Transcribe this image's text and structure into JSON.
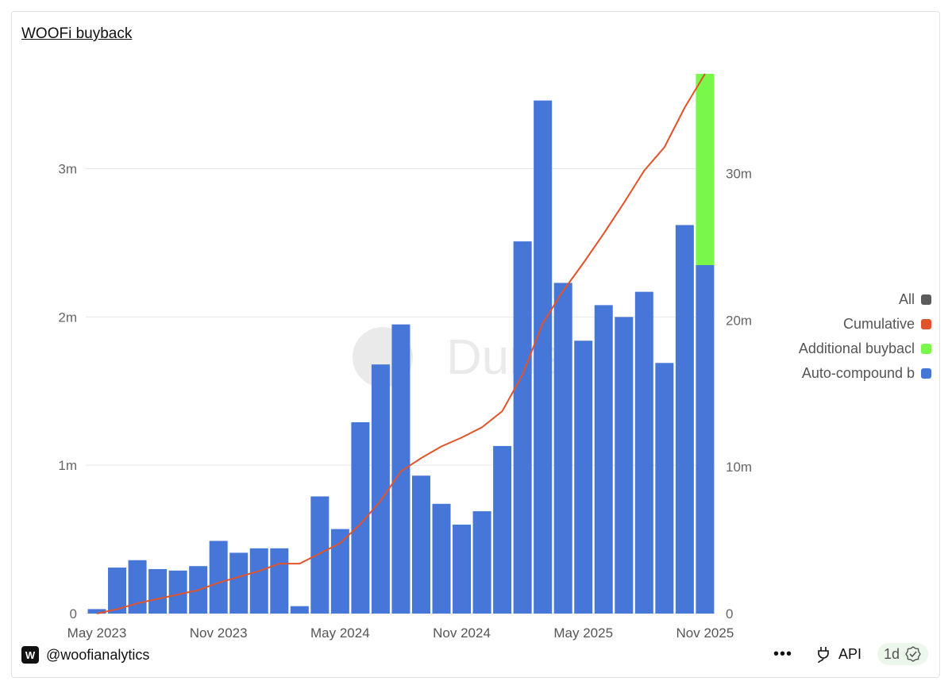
{
  "title": "WOOFi buyback",
  "watermark": "Dune",
  "footer": {
    "handle": "@woofianalytics",
    "api_label": "API",
    "refresh_badge": "1d"
  },
  "legend": [
    {
      "label": "All",
      "color": "#5b5b5b"
    },
    {
      "label": "Cumulative",
      "color": "#e0542c"
    },
    {
      "label": "Additional buybacl",
      "color": "#79f74a"
    },
    {
      "label": "Auto-compound b",
      "color": "#4676d7"
    }
  ],
  "chart_data": {
    "type": "bar",
    "stacked": true,
    "categories": [
      "May 2023",
      "Jun 2023",
      "Jul 2023",
      "Aug 2023",
      "Sep 2023",
      "Oct 2023",
      "Nov 2023",
      "Dec 2023",
      "Jan 2024",
      "Feb 2024",
      "Mar 2024",
      "Apr 2024",
      "May 2024",
      "Jun 2024",
      "Jul 2024",
      "Aug 2024",
      "Sep 2024",
      "Oct 2024",
      "Nov 2024",
      "Dec 2024",
      "Jan 2025",
      "Feb 2025",
      "Mar 2025",
      "Apr 2025",
      "May 2025",
      "Jun 2025",
      "Jul 2025",
      "Aug 2025",
      "Sep 2025",
      "Oct 2025",
      "Nov 2025"
    ],
    "x_tick_labels": [
      "May 2023",
      "Nov 2023",
      "May 2024",
      "Nov 2024",
      "May 2025",
      "Nov 2025"
    ],
    "series": [
      {
        "name": "Auto-compound b",
        "axis": "left",
        "type": "bar",
        "color": "#4676d7",
        "values": [
          0.03,
          0.31,
          0.36,
          0.3,
          0.29,
          0.32,
          0.49,
          0.41,
          0.44,
          0.44,
          0.05,
          0.79,
          0.57,
          1.29,
          1.68,
          1.95,
          0.93,
          0.74,
          0.6,
          0.69,
          1.13,
          2.51,
          3.46,
          2.23,
          1.84,
          2.08,
          2.0,
          2.17,
          1.69,
          2.62,
          2.35
        ]
      },
      {
        "name": "Additional buybacl",
        "axis": "left",
        "type": "bar",
        "color": "#79f74a",
        "values": [
          0,
          0,
          0,
          0,
          0,
          0,
          0,
          0,
          0,
          0,
          0,
          0,
          0,
          0,
          0,
          0,
          0,
          0,
          0,
          0,
          0,
          0,
          0,
          0,
          0,
          0,
          0,
          0,
          0,
          0,
          1.29
        ]
      },
      {
        "name": "Cumulative",
        "axis": "right",
        "type": "line",
        "color": "#e0542c",
        "values": [
          0,
          0.3,
          0.7,
          1.0,
          1.3,
          1.6,
          2.1,
          2.5,
          2.9,
          3.4,
          3.4,
          4.1,
          4.8,
          6.1,
          7.7,
          9.7,
          10.6,
          11.4,
          12.0,
          12.7,
          13.8,
          16.3,
          19.8,
          22.0,
          23.9,
          25.9,
          28.0,
          30.2,
          31.8,
          34.5,
          36.8
        ]
      }
    ],
    "y_left": {
      "unit": "m",
      "range": [
        0,
        3.64
      ],
      "ticks": [
        "0",
        "1m",
        "2m",
        "3m"
      ],
      "tick_values": [
        0,
        1,
        2,
        3
      ]
    },
    "y_right": {
      "unit": "m",
      "range": [
        0,
        36.8
      ],
      "ticks": [
        "0",
        "10m",
        "20m",
        "30m"
      ],
      "tick_values": [
        0,
        10,
        20,
        30
      ]
    },
    "grid": true,
    "legend_position": "right"
  }
}
